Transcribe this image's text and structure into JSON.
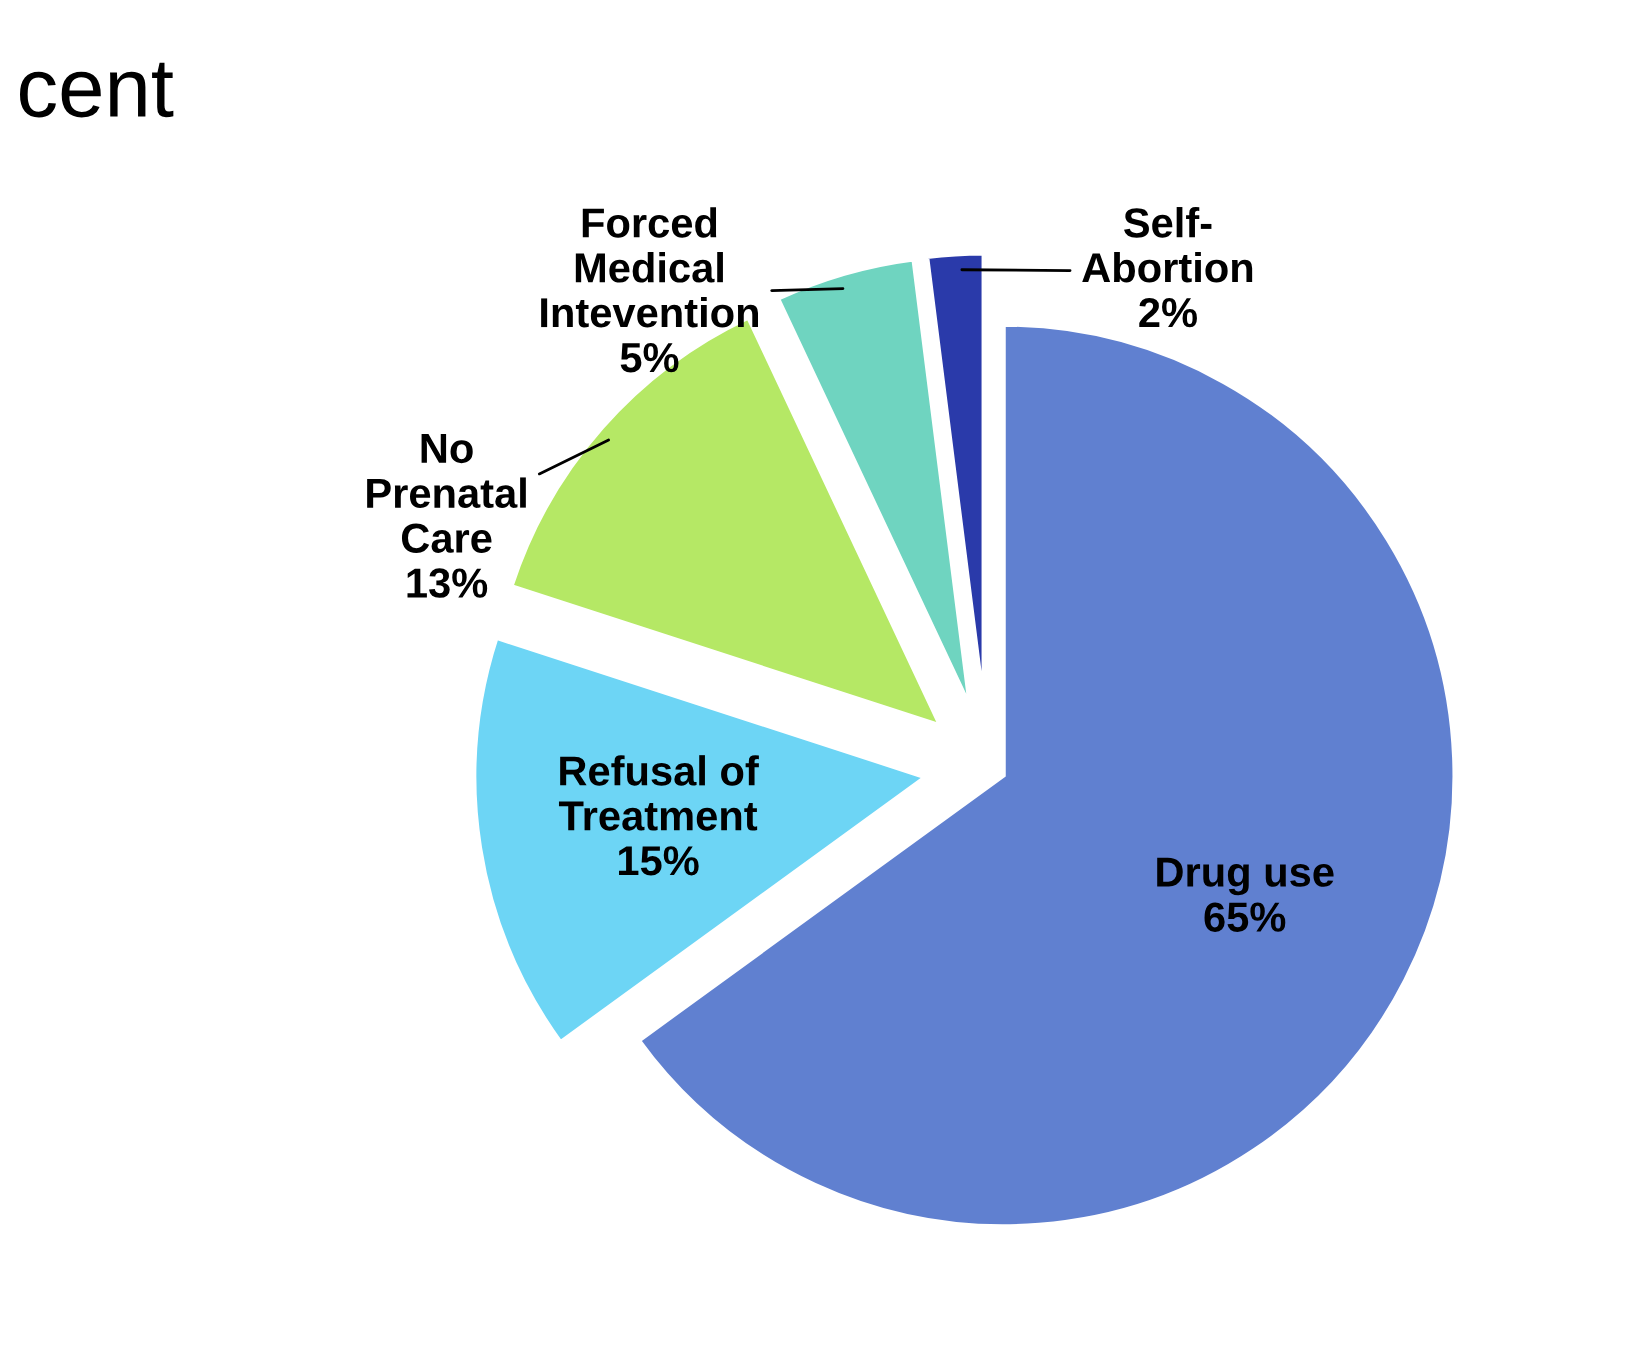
{
  "chart_data": {
    "type": "pie",
    "title": "cent",
    "categories": [
      "Drug use",
      "Refusal of\nTreatment",
      "No\nPrenatal\nCare",
      "Forced\nMedical\nIntevention",
      "Self-\nAbortion"
    ],
    "values": [
      65,
      15,
      13,
      5,
      2
    ],
    "value_labels": [
      "65%",
      "15%",
      "13%",
      "5%",
      "2%"
    ],
    "colors": [
      "#6080d0",
      "#6dd5f5",
      "#b5e865",
      "#6fd4c0",
      "#2a3aaa"
    ]
  }
}
